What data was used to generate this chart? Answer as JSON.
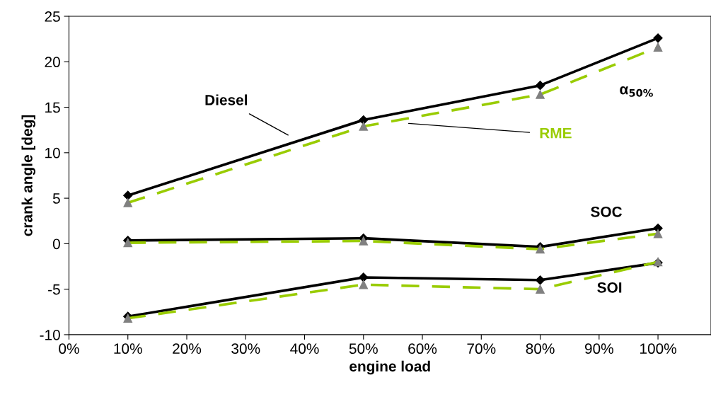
{
  "chart_data": {
    "type": "line",
    "xlabel": "engine load",
    "ylabel": "crank angle [deg]",
    "x": [
      10,
      50,
      80,
      100
    ],
    "series": [
      {
        "color": "#000000",
        "marker": "diamond",
        "line_style": "solid",
        "values": [
          5.3,
          13.6,
          17.4,
          22.6
        ]
      },
      {
        "color": "#99cc00",
        "marker": "triangle",
        "line_style": "dashed",
        "values": [
          4.5,
          12.9,
          16.4,
          21.6
        ]
      },
      {
        "color": "#000000",
        "marker": "diamond",
        "line_style": "solid",
        "values": [
          0.35,
          0.6,
          -0.35,
          1.7
        ]
      },
      {
        "color": "#99cc00",
        "marker": "triangle",
        "line_style": "dashed",
        "values": [
          0.1,
          0.3,
          -0.6,
          1.1
        ]
      },
      {
        "color": "#000000",
        "marker": "diamond",
        "line_style": "solid",
        "values": [
          -8.0,
          -3.7,
          -4.0,
          -2.1
        ]
      },
      {
        "color": "#99cc00",
        "marker": "triangle",
        "line_style": "dashed",
        "values": [
          -8.2,
          -4.5,
          -5.0,
          -2.0
        ]
      }
    ],
    "annotations": [
      "Diesel",
      "RME",
      "α$_{50%}$",
      "SOC",
      "SOI"
    ],
    "xlim": [
      0,
      109
    ],
    "xticks": [
      {
        "value": 0,
        "label": "0%"
      },
      {
        "value": 10,
        "label": "10%"
      },
      {
        "value": 20,
        "label": "20%"
      },
      {
        "value": 30,
        "label": "30%"
      },
      {
        "value": 40,
        "label": "40%"
      },
      {
        "value": 50,
        "label": "50%"
      },
      {
        "value": 60,
        "label": "60%"
      },
      {
        "value": 70,
        "label": "70%"
      },
      {
        "value": 80,
        "label": "80%"
      },
      {
        "value": 90,
        "label": "90%"
      },
      {
        "value": 100,
        "label": "100%"
      }
    ],
    "ylim": [
      -10,
      25
    ],
    "yticks": [
      -10,
      -5,
      0,
      5,
      10,
      15,
      20,
      25
    ],
    "grid": false
  }
}
